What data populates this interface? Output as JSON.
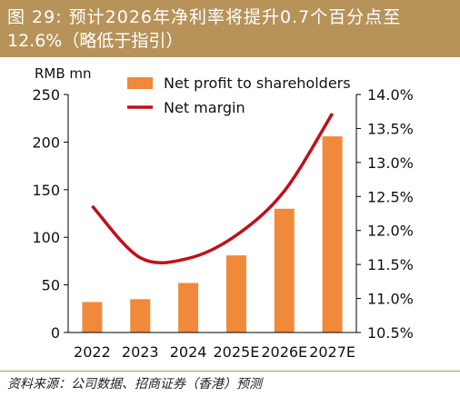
{
  "title": {
    "line1": "图  29: 预计2026年净利率将提升0.7个百分点至",
    "line2": "12.6%（略低于指引）"
  },
  "source": "资料来源：公司数据、招商证券（香港）预测",
  "colors": {
    "bar": "#f08a3a",
    "line": "#c0101a",
    "title_bg": "#b7935a"
  },
  "chart_data": {
    "type": "bar",
    "categories": [
      "2022",
      "2023",
      "2024",
      "2025E",
      "2026E",
      "2027E"
    ],
    "y_left_unit": "RMB mn",
    "y_left_range": [
      0,
      250
    ],
    "y_left_ticks": [
      "0",
      "50",
      "100",
      "150",
      "200",
      "250"
    ],
    "y_right_range": [
      10.5,
      14.0
    ],
    "y_right_ticks": [
      "10.5%",
      "11.0%",
      "11.5%",
      "12.0%",
      "12.5%",
      "13.0%",
      "13.5%",
      "14.0%"
    ],
    "series": [
      {
        "name": "Net profit to shareholders",
        "type": "bar",
        "axis": "left",
        "values": [
          32,
          35,
          52,
          81,
          130,
          206
        ]
      },
      {
        "name": "Net margin",
        "type": "line",
        "axis": "right",
        "values": [
          12.36,
          11.6,
          11.59,
          11.93,
          12.58,
          13.72
        ]
      }
    ],
    "legend_position": "top"
  }
}
